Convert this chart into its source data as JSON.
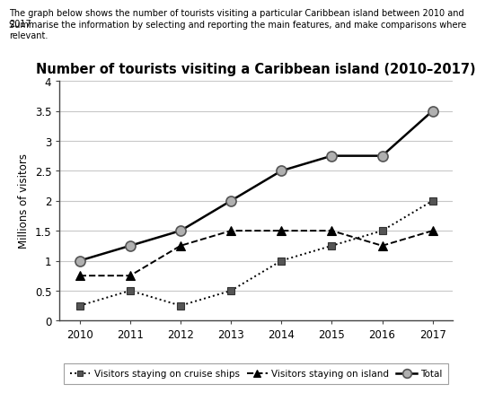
{
  "title": "Number of tourists visiting a Caribbean island (2010–2017)",
  "header_line1": "The graph below shows the number of tourists visiting a particular Caribbean island between 2010 and 2017.",
  "header_line2": "Summarise the information by selecting and reporting the main features, and make comparisons where relevant.",
  "ylabel": "Millions of visitors",
  "years": [
    2010,
    2011,
    2012,
    2013,
    2014,
    2015,
    2016,
    2017
  ],
  "cruise_ships": [
    0.25,
    0.5,
    0.25,
    0.5,
    1.0,
    1.25,
    1.5,
    2.0
  ],
  "on_island": [
    0.75,
    0.75,
    1.25,
    1.5,
    1.5,
    1.5,
    1.25,
    1.5
  ],
  "total": [
    1.0,
    1.25,
    1.5,
    2.0,
    2.5,
    2.75,
    2.75,
    3.5
  ],
  "ylim": [
    0,
    4
  ],
  "yticks": [
    0,
    0.5,
    1.0,
    1.5,
    2.0,
    2.5,
    3.0,
    3.5,
    4.0
  ],
  "ytick_labels": [
    "0",
    "0.5",
    "1",
    "1.5",
    "2",
    "2.5",
    "3",
    "3.5",
    "4"
  ],
  "background_color": "#ffffff",
  "grid_color": "#c8c8c8",
  "legend_cruise_label": "Visitors staying on cruise ships",
  "legend_island_label": "Visitors staying on island",
  "legend_total_label": "Total",
  "header_fontsize": 7.0,
  "title_fontsize": 10.5,
  "tick_fontsize": 8.5,
  "ylabel_fontsize": 8.5
}
